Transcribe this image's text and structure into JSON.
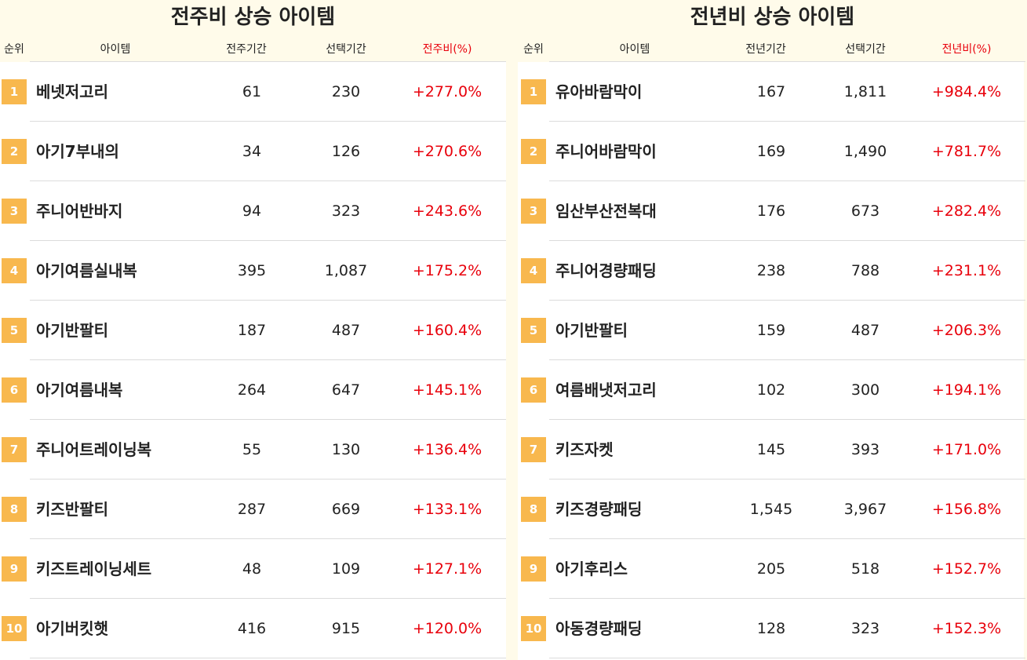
{
  "tables": [
    {
      "title": "전주비 상승 아이템",
      "headers": [
        "순위",
        "아이템",
        "전주기간",
        "선택기간",
        "전주비(%)"
      ],
      "rows": [
        [
          "1",
          "베넷저고리",
          "61",
          "230",
          "+277.0%"
        ],
        [
          "2",
          "아기7부내의",
          "34",
          "126",
          "+270.6%"
        ],
        [
          "3",
          "주니어반바지",
          "94",
          "323",
          "+243.6%"
        ],
        [
          "4",
          "아기여름실내복",
          "395",
          "1,087",
          "+175.2%"
        ],
        [
          "5",
          "아기반팔티",
          "187",
          "487",
          "+160.4%"
        ],
        [
          "6",
          "아기여름내복",
          "264",
          "647",
          "+145.1%"
        ],
        [
          "7",
          "주니어트레이닝복",
          "55",
          "130",
          "+136.4%"
        ],
        [
          "8",
          "키즈반팔티",
          "287",
          "669",
          "+133.1%"
        ],
        [
          "9",
          "키즈트레이닝세트",
          "48",
          "109",
          "+127.1%"
        ],
        [
          "10",
          "아기버킷햇",
          "416",
          "915",
          "+120.0%"
        ]
      ]
    },
    {
      "title": "전년비 상승 아이템",
      "headers": [
        "순위",
        "아이템",
        "전년기간",
        "선택기간",
        "전년비(%)"
      ],
      "rows": [
        [
          "1",
          "유아바람막이",
          "167",
          "1,811",
          "+984.4%"
        ],
        [
          "2",
          "주니어바람막이",
          "169",
          "1,490",
          "+781.7%"
        ],
        [
          "3",
          "임산부산전복대",
          "176",
          "673",
          "+282.4%"
        ],
        [
          "4",
          "주니어경량패딩",
          "238",
          "788",
          "+231.1%"
        ],
        [
          "5",
          "아기반팔티",
          "159",
          "487",
          "+206.3%"
        ],
        [
          "6",
          "여름배냇저고리",
          "102",
          "300",
          "+194.1%"
        ],
        [
          "7",
          "키즈자켓",
          "145",
          "393",
          "+171.0%"
        ],
        [
          "8",
          "키즈경량패딩",
          "1,545",
          "3,967",
          "+156.8%"
        ],
        [
          "9",
          "아기후리스",
          "205",
          "518",
          "+152.7%"
        ],
        [
          "10",
          "아동경량패딩",
          "128",
          "323",
          "+152.3%"
        ]
      ]
    }
  ]
}
